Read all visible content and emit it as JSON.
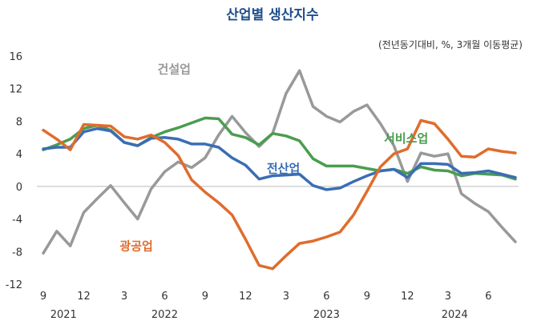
{
  "chart_data": {
    "type": "line",
    "title": "산업별 생산지수",
    "note": "(전년동기대비, %, 3개월 이동평균)",
    "ylim": [
      -12,
      16
    ],
    "yticks": [
      "16",
      "12",
      "8",
      "4",
      "0",
      "-4",
      "-8",
      "-12"
    ],
    "x_ticks": [
      {
        "i": 0,
        "label": "9"
      },
      {
        "i": 3,
        "label": "12"
      },
      {
        "i": 6,
        "label": "3"
      },
      {
        "i": 9,
        "label": "6"
      },
      {
        "i": 12,
        "label": "9"
      },
      {
        "i": 15,
        "label": "12"
      },
      {
        "i": 18,
        "label": "3"
      },
      {
        "i": 21,
        "label": "6"
      },
      {
        "i": 24,
        "label": "9"
      },
      {
        "i": 27,
        "label": "12"
      },
      {
        "i": 30,
        "label": "3"
      },
      {
        "i": 33,
        "label": "6"
      }
    ],
    "years": [
      {
        "i": 1.5,
        "label": "2021"
      },
      {
        "i": 9,
        "label": "2022"
      },
      {
        "i": 21,
        "label": "2023"
      },
      {
        "i": 30.5,
        "label": "2024"
      }
    ],
    "x": [
      "2021-09",
      "2021-10",
      "2021-11",
      "2021-12",
      "2022-01",
      "2022-02",
      "2022-03",
      "2022-04",
      "2022-05",
      "2022-06",
      "2022-07",
      "2022-08",
      "2022-09",
      "2022-10",
      "2022-11",
      "2022-12",
      "2023-01",
      "2023-02",
      "2023-03",
      "2023-04",
      "2023-05",
      "2023-06",
      "2023-07",
      "2023-08",
      "2023-09",
      "2023-10",
      "2023-11",
      "2023-12",
      "2024-01",
      "2024-02",
      "2024-03",
      "2024-04",
      "2024-05",
      "2024-06",
      "2024-07",
      "2024-08"
    ],
    "series": [
      {
        "name": "건설업",
        "color": "#999999",
        "label_pos": "top",
        "values": [
          -8.2,
          -5.5,
          -7.3,
          -3.2,
          -1.5,
          0.1,
          -2,
          -4,
          -0.3,
          1.8,
          3,
          2.3,
          3.5,
          6.3,
          8.6,
          6.6,
          4.9,
          6.5,
          11.4,
          14.2,
          9.8,
          8.6,
          7.9,
          9.2,
          10,
          7.7,
          5,
          0.6,
          4.1,
          3.7,
          4,
          -0.9,
          -2.1,
          -3.1,
          -5,
          -6.8
        ]
      },
      {
        "name": "서비스업",
        "color": "#4a9d4e",
        "label_pos": "right",
        "values": [
          4.5,
          5.1,
          5.8,
          7.1,
          7.5,
          6.9,
          5.4,
          5,
          6,
          6.7,
          7.2,
          7.8,
          8.4,
          8.3,
          6.4,
          6,
          5.1,
          6.5,
          6.2,
          5.6,
          3.4,
          2.5,
          2.5,
          2.5,
          2.2,
          1.9,
          2.1,
          1.6,
          2.4,
          2,
          1.9,
          1.3,
          1.6,
          1.5,
          1.4,
          0.9
        ]
      },
      {
        "name": "전산업",
        "color": "#3a6db5",
        "label_pos": "center",
        "values": [
          4.6,
          4.8,
          4.8,
          6.7,
          7.1,
          6.8,
          5.4,
          5,
          5.9,
          6,
          5.8,
          5.2,
          5.2,
          4.8,
          3.5,
          2.6,
          0.9,
          1.3,
          1.4,
          1.5,
          0.1,
          -0.4,
          -0.2,
          0.6,
          1.3,
          1.9,
          2.1,
          1.1,
          2.8,
          2.8,
          2.7,
          1.6,
          1.7,
          1.9,
          1.5,
          1.1
        ]
      },
      {
        "name": "광공업",
        "color": "#e06c2c",
        "label_pos": "left",
        "values": [
          6.9,
          5.8,
          4.5,
          7.6,
          7.5,
          7.4,
          6.1,
          5.8,
          6.3,
          5.4,
          3.8,
          0.8,
          -0.7,
          -2,
          -3.5,
          -6.5,
          -9.7,
          -10.1,
          -8.5,
          -7,
          -6.7,
          -6.2,
          -5.6,
          -3.5,
          -0.6,
          2.4,
          4,
          4.6,
          8.1,
          7.7,
          5.8,
          3.7,
          3.6,
          4.6,
          4.3,
          4.1
        ]
      }
    ]
  }
}
